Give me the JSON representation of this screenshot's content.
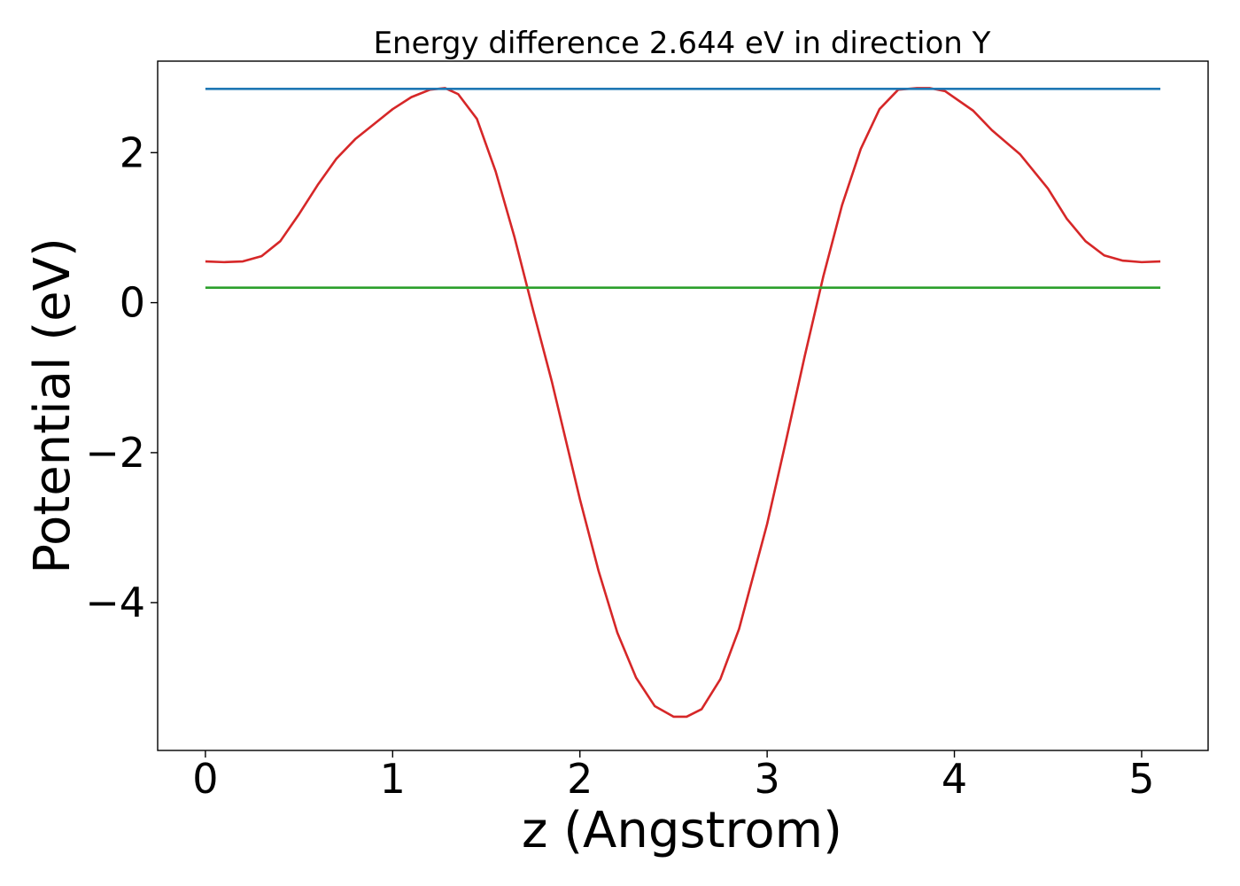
{
  "chart_data": {
    "type": "line",
    "title": "Energy difference 2.644 eV in direction Y",
    "xlabel": "z (Angstrom)",
    "ylabel": "Potential (eV)",
    "xlim": [
      -0.255,
      5.355
    ],
    "ylim": [
      -5.97,
      3.22
    ],
    "xticks": [
      0,
      1,
      2,
      3,
      4,
      5
    ],
    "xtick_labels": [
      "0",
      "1",
      "2",
      "3",
      "4",
      "5"
    ],
    "yticks": [
      2,
      0,
      -2,
      -4
    ],
    "ytick_labels": [
      "2",
      "0",
      "−2",
      "−4"
    ],
    "grid": false,
    "series": [
      {
        "color": "#d62728",
        "x": [
          0,
          0.1,
          0.2,
          0.3,
          0.4,
          0.5,
          0.6,
          0.7,
          0.8,
          0.9,
          1.0,
          1.1,
          1.2,
          1.28,
          1.35,
          1.45,
          1.55,
          1.65,
          1.75,
          1.85,
          2.0,
          2.1,
          2.2,
          2.3,
          2.4,
          2.5,
          2.57,
          2.65,
          2.75,
          2.85,
          3.0,
          3.1,
          3.2,
          3.3,
          3.4,
          3.5,
          3.6,
          3.7,
          3.8,
          3.87,
          3.95,
          4.1,
          4.2,
          4.35,
          4.5,
          4.6,
          4.7,
          4.8,
          4.9,
          5.0,
          5.1
        ],
        "y": [
          0.55,
          0.54,
          0.55,
          0.62,
          0.82,
          1.18,
          1.57,
          1.92,
          2.18,
          2.38,
          2.58,
          2.74,
          2.84,
          2.86,
          2.78,
          2.45,
          1.75,
          0.88,
          -0.1,
          -1.05,
          -2.62,
          -3.58,
          -4.4,
          -5.0,
          -5.38,
          -5.52,
          -5.52,
          -5.42,
          -5.02,
          -4.35,
          -2.95,
          -1.85,
          -0.72,
          0.35,
          1.3,
          2.05,
          2.58,
          2.84,
          2.86,
          2.86,
          2.82,
          2.56,
          2.3,
          1.98,
          1.52,
          1.12,
          0.82,
          0.63,
          0.56,
          0.54,
          0.55
        ]
      },
      {
        "color": "#1f77b4",
        "x": [
          0,
          5.1
        ],
        "y": [
          2.85,
          2.85
        ]
      },
      {
        "color": "#2ca02c",
        "x": [
          0,
          5.1
        ],
        "y": [
          0.2,
          0.2
        ]
      }
    ]
  }
}
